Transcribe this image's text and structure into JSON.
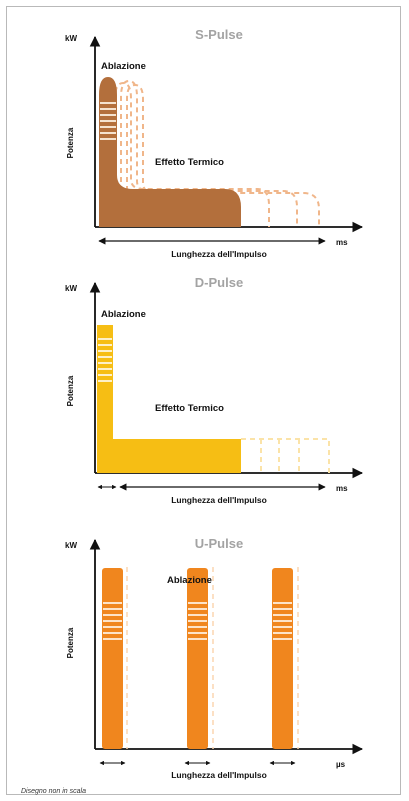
{
  "panels": [
    {
      "id": "s-pulse",
      "title": "S-Pulse",
      "y_unit": "kW",
      "y_label": "Potenza",
      "x_unit": "ms",
      "x_label": "Lunghezza dell'Impulso",
      "ablation_label": "Ablazione",
      "thermal_label": "Effetto Termico",
      "color": "#b36f3c"
    },
    {
      "id": "d-pulse",
      "title": "D-Pulse",
      "y_unit": "kW",
      "y_label": "Potenza",
      "x_unit": "ms",
      "x_label": "Lunghezza dell'Impulso",
      "ablation_label": "Ablazione",
      "thermal_label": "Effetto Termico",
      "color": "#f6be14"
    },
    {
      "id": "u-pulse",
      "title": "U-Pulse",
      "y_unit": "kW",
      "y_label": "Potenza",
      "x_unit": "µs",
      "x_label": "Lunghezza dell'Impulso",
      "ablation_label": "Ablazione",
      "color": "#f0861e"
    }
  ],
  "footnote": "Disegno non in scala"
}
